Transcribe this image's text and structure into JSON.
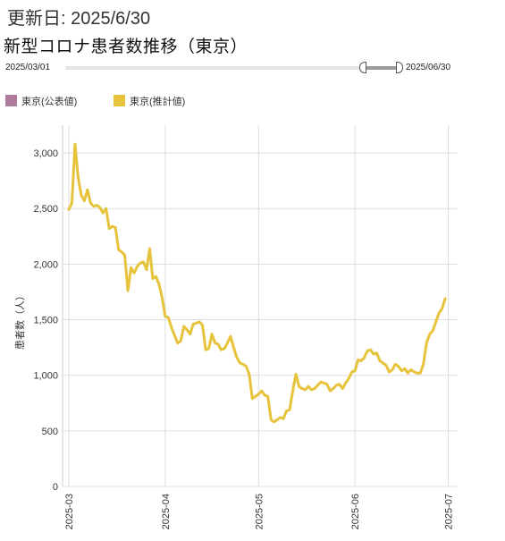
{
  "header": {
    "updated": "更新日: 2025/6/30",
    "title": "新型コロナ患者数推移（東京）"
  },
  "range": {
    "start_label": "2025/03/01",
    "end_label": "2025/06/30",
    "selected_from": 0.89,
    "selected_to": 1.0
  },
  "legend": [
    {
      "label": "東京(公表値)",
      "color": "#b07c9e"
    },
    {
      "label": "東京(推計値)",
      "color": "#e6c33a"
    }
  ],
  "chart_data": {
    "type": "line",
    "ylabel": "患者数（人）",
    "xlabel": "",
    "ylim": [
      0,
      3250
    ],
    "xlim": [
      "2025-02-27",
      "2025-07-04"
    ],
    "y_ticks": [
      {
        "value": 0,
        "label": "0"
      },
      {
        "value": 500,
        "label": "500"
      },
      {
        "value": 1000,
        "label": "1,000"
      },
      {
        "value": 1500,
        "label": "1,500"
      },
      {
        "value": 2000,
        "label": "2,000"
      },
      {
        "value": 2500,
        "label": "2,500"
      },
      {
        "value": 3000,
        "label": "3,000"
      }
    ],
    "x_ticks": [
      {
        "date": "2025-03-01",
        "label": "2025-03"
      },
      {
        "date": "2025-04-01",
        "label": "2025-04"
      },
      {
        "date": "2025-05-01",
        "label": "2025-05"
      },
      {
        "date": "2025-06-01",
        "label": "2025-06"
      },
      {
        "date": "2025-07-01",
        "label": "2025-07"
      }
    ],
    "grid": true,
    "series": [
      {
        "name": "東京(推計値)",
        "color": "#e6c33a",
        "points": [
          [
            "2025-03-01",
            2490
          ],
          [
            "2025-03-02",
            2550
          ],
          [
            "2025-03-03",
            3080
          ],
          [
            "2025-03-04",
            2780
          ],
          [
            "2025-03-05",
            2620
          ],
          [
            "2025-03-06",
            2570
          ],
          [
            "2025-03-07",
            2670
          ],
          [
            "2025-03-08",
            2550
          ],
          [
            "2025-03-09",
            2520
          ],
          [
            "2025-03-10",
            2530
          ],
          [
            "2025-03-11",
            2510
          ],
          [
            "2025-03-12",
            2460
          ],
          [
            "2025-03-13",
            2500
          ],
          [
            "2025-03-14",
            2320
          ],
          [
            "2025-03-15",
            2340
          ],
          [
            "2025-03-16",
            2330
          ],
          [
            "2025-03-17",
            2130
          ],
          [
            "2025-03-18",
            2110
          ],
          [
            "2025-03-19",
            2080
          ],
          [
            "2025-03-20",
            1760
          ],
          [
            "2025-03-21",
            1970
          ],
          [
            "2025-03-22",
            1920
          ],
          [
            "2025-03-23",
            1980
          ],
          [
            "2025-03-24",
            2010
          ],
          [
            "2025-03-25",
            2020
          ],
          [
            "2025-03-26",
            1950
          ],
          [
            "2025-03-27",
            2140
          ],
          [
            "2025-03-28",
            1870
          ],
          [
            "2025-03-29",
            1890
          ],
          [
            "2025-03-30",
            1820
          ],
          [
            "2025-03-31",
            1700
          ],
          [
            "2025-04-01",
            1530
          ],
          [
            "2025-04-02",
            1520
          ],
          [
            "2025-04-03",
            1430
          ],
          [
            "2025-04-04",
            1360
          ],
          [
            "2025-04-05",
            1290
          ],
          [
            "2025-04-06",
            1310
          ],
          [
            "2025-04-07",
            1440
          ],
          [
            "2025-04-08",
            1410
          ],
          [
            "2025-04-09",
            1370
          ],
          [
            "2025-04-10",
            1460
          ],
          [
            "2025-04-11",
            1470
          ],
          [
            "2025-04-12",
            1480
          ],
          [
            "2025-04-13",
            1450
          ],
          [
            "2025-04-14",
            1230
          ],
          [
            "2025-04-15",
            1240
          ],
          [
            "2025-04-16",
            1370
          ],
          [
            "2025-04-17",
            1290
          ],
          [
            "2025-04-18",
            1280
          ],
          [
            "2025-04-19",
            1230
          ],
          [
            "2025-04-20",
            1240
          ],
          [
            "2025-04-21",
            1290
          ],
          [
            "2025-04-22",
            1350
          ],
          [
            "2025-04-23",
            1250
          ],
          [
            "2025-04-24",
            1160
          ],
          [
            "2025-04-25",
            1110
          ],
          [
            "2025-04-26",
            1100
          ],
          [
            "2025-04-27",
            1080
          ],
          [
            "2025-04-28",
            1010
          ],
          [
            "2025-04-29",
            790
          ],
          [
            "2025-04-30",
            810
          ],
          [
            "2025-05-01",
            830
          ],
          [
            "2025-05-02",
            860
          ],
          [
            "2025-05-03",
            820
          ],
          [
            "2025-05-04",
            810
          ],
          [
            "2025-05-05",
            600
          ],
          [
            "2025-05-06",
            580
          ],
          [
            "2025-05-07",
            600
          ],
          [
            "2025-05-08",
            620
          ],
          [
            "2025-05-09",
            610
          ],
          [
            "2025-05-10",
            680
          ],
          [
            "2025-05-11",
            690
          ],
          [
            "2025-05-12",
            860
          ],
          [
            "2025-05-13",
            1010
          ],
          [
            "2025-05-14",
            900
          ],
          [
            "2025-05-15",
            880
          ],
          [
            "2025-05-16",
            870
          ],
          [
            "2025-05-17",
            900
          ],
          [
            "2025-05-18",
            870
          ],
          [
            "2025-05-19",
            880
          ],
          [
            "2025-05-20",
            910
          ],
          [
            "2025-05-21",
            940
          ],
          [
            "2025-05-22",
            930
          ],
          [
            "2025-05-23",
            920
          ],
          [
            "2025-05-24",
            860
          ],
          [
            "2025-05-25",
            880
          ],
          [
            "2025-05-26",
            910
          ],
          [
            "2025-05-27",
            920
          ],
          [
            "2025-05-28",
            880
          ],
          [
            "2025-05-29",
            930
          ],
          [
            "2025-05-30",
            970
          ],
          [
            "2025-05-31",
            1030
          ],
          [
            "2025-06-01",
            1040
          ],
          [
            "2025-06-02",
            1140
          ],
          [
            "2025-06-03",
            1130
          ],
          [
            "2025-06-04",
            1160
          ],
          [
            "2025-06-05",
            1220
          ],
          [
            "2025-06-06",
            1230
          ],
          [
            "2025-06-07",
            1190
          ],
          [
            "2025-06-08",
            1200
          ],
          [
            "2025-06-09",
            1130
          ],
          [
            "2025-06-10",
            1110
          ],
          [
            "2025-06-11",
            1090
          ],
          [
            "2025-06-12",
            1030
          ],
          [
            "2025-06-13",
            1050
          ],
          [
            "2025-06-14",
            1100
          ],
          [
            "2025-06-15",
            1080
          ],
          [
            "2025-06-16",
            1040
          ],
          [
            "2025-06-17",
            1060
          ],
          [
            "2025-06-18",
            1020
          ],
          [
            "2025-06-19",
            1050
          ],
          [
            "2025-06-20",
            1030
          ],
          [
            "2025-06-21",
            1020
          ],
          [
            "2025-06-22",
            1020
          ],
          [
            "2025-06-23",
            1100
          ],
          [
            "2025-06-24",
            1290
          ],
          [
            "2025-06-25",
            1370
          ],
          [
            "2025-06-26",
            1400
          ],
          [
            "2025-06-27",
            1480
          ],
          [
            "2025-06-28",
            1560
          ],
          [
            "2025-06-29",
            1600
          ],
          [
            "2025-06-30",
            1690
          ]
        ]
      }
    ]
  }
}
